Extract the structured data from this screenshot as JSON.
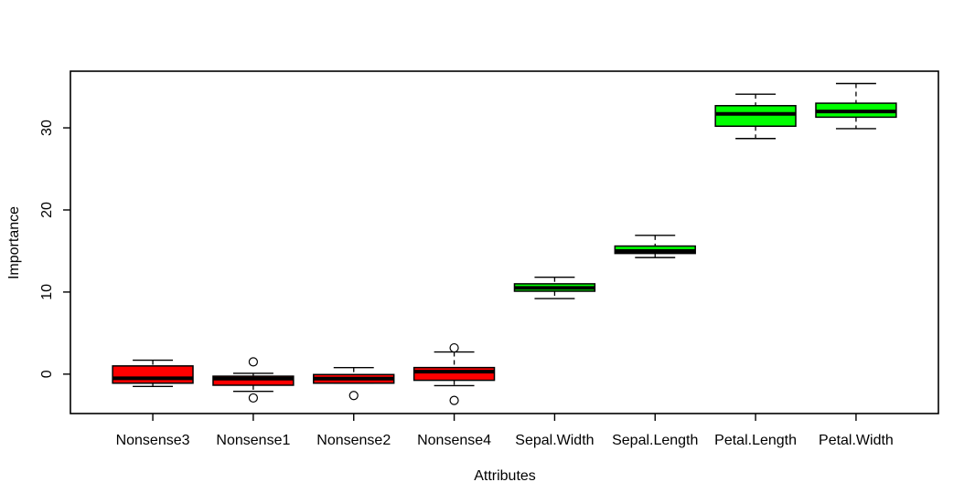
{
  "figure": {
    "background": "#FFFFFF",
    "border_color": "#000000"
  },
  "chart_data": {
    "type": "boxplot",
    "title": "",
    "xlabel": "Attributes",
    "ylabel": "Importance",
    "ylim": [
      -4.8,
      36.9
    ],
    "yticks": [
      0,
      10,
      20,
      30
    ],
    "grid": false,
    "legend": "none",
    "colors": {
      "nonsense_box": "#FF0000",
      "real_attribute_box": "#00FF00",
      "stroke": "#000000",
      "outlier_fill": "#FFFFFF"
    },
    "categories": [
      "Nonsense3",
      "Nonsense1",
      "Nonsense2",
      "Nonsense4",
      "Sepal.Width",
      "Sepal.Length",
      "Petal.Length",
      "Petal.Width"
    ],
    "boxes": [
      {
        "label": "Nonsense3",
        "color": "#FF0000",
        "whisker_low": -1.5,
        "q1": -1.1,
        "median": -0.5,
        "q3": 1.0,
        "whisker_high": 1.7,
        "outliers": []
      },
      {
        "label": "Nonsense1",
        "color": "#FF0000",
        "whisker_low": -2.1,
        "q1": -1.35,
        "median": -0.55,
        "q3": -0.25,
        "whisker_high": 0.1,
        "outliers": [
          1.5,
          -2.9
        ]
      },
      {
        "label": "Nonsense2",
        "color": "#FF0000",
        "whisker_low": -1.1,
        "q1": -1.1,
        "median": -0.55,
        "q3": -0.05,
        "whisker_high": 0.8,
        "outliers": [
          -2.6
        ]
      },
      {
        "label": "Nonsense4",
        "color": "#FF0000",
        "whisker_low": -1.4,
        "q1": -0.75,
        "median": 0.3,
        "q3": 0.8,
        "whisker_high": 2.7,
        "outliers": [
          3.2,
          -3.2
        ]
      },
      {
        "label": "Sepal.Width",
        "color": "#00FF00",
        "whisker_low": 9.2,
        "q1": 10.1,
        "median": 10.5,
        "q3": 11.0,
        "whisker_high": 11.8,
        "outliers": []
      },
      {
        "label": "Sepal.Length",
        "color": "#00FF00",
        "whisker_low": 14.2,
        "q1": 14.7,
        "median": 15.0,
        "q3": 15.6,
        "whisker_high": 16.9,
        "outliers": []
      },
      {
        "label": "Petal.Length",
        "color": "#00FF00",
        "whisker_low": 28.7,
        "q1": 30.2,
        "median": 31.7,
        "q3": 32.7,
        "whisker_high": 34.1,
        "outliers": []
      },
      {
        "label": "Petal.Width",
        "color": "#00FF00",
        "whisker_low": 29.9,
        "q1": 31.3,
        "median": 32.0,
        "q3": 33.0,
        "whisker_high": 35.4,
        "outliers": []
      }
    ]
  }
}
